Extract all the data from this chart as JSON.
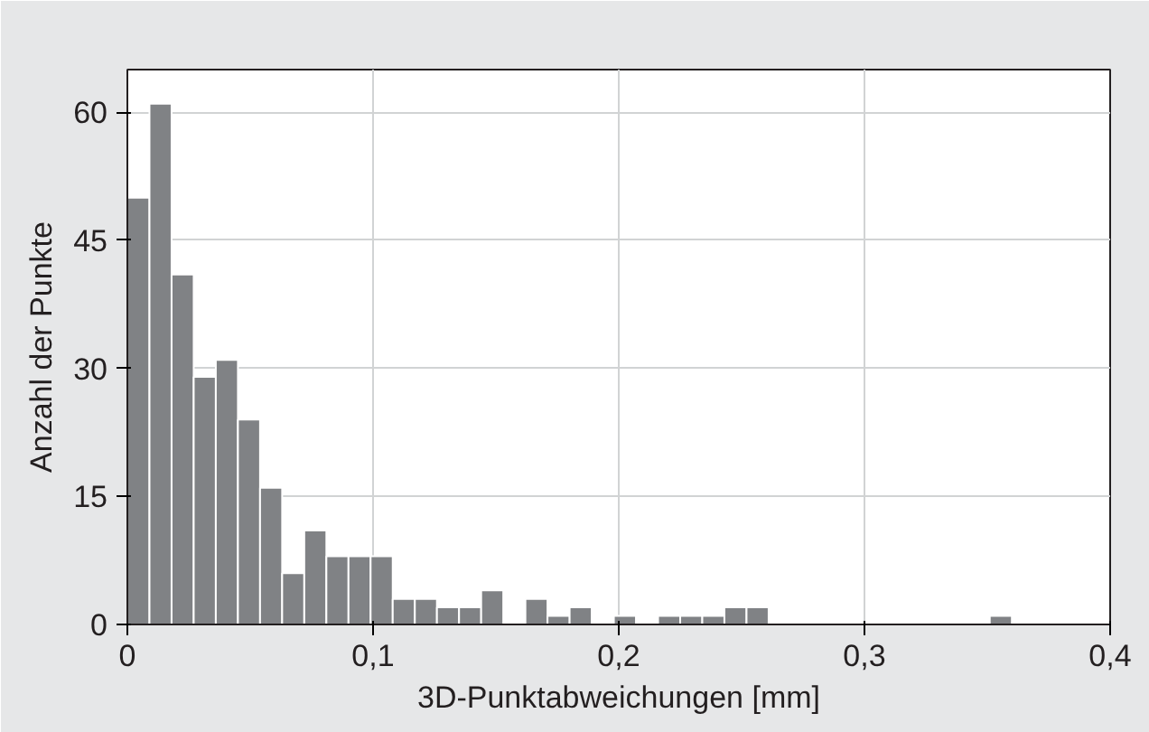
{
  "chart_data": {
    "type": "histogram",
    "xlabel": "3D-Punktabweichungen [mm]",
    "ylabel": "Anzahl der Punkte",
    "bins": [
      0,
      0.009,
      0.018,
      0.027,
      0.036,
      0.045,
      0.054,
      0.063,
      0.072,
      0.081,
      0.09,
      0.099,
      0.108,
      0.117,
      0.126,
      0.135,
      0.144,
      0.153,
      0.162,
      0.171,
      0.18,
      0.189,
      0.198,
      0.207,
      0.216,
      0.225,
      0.234,
      0.243,
      0.252,
      0.261,
      0.27,
      0.279,
      0.288,
      0.297,
      0.306,
      0.315,
      0.324,
      0.333,
      0.342,
      0.351,
      0.36
    ],
    "values": [
      50,
      61,
      41,
      29,
      31,
      24,
      16,
      6,
      11,
      8,
      8,
      8,
      3,
      3,
      2,
      2,
      4,
      0,
      3,
      1,
      2,
      0,
      1,
      0,
      1,
      1,
      1,
      2,
      2,
      0,
      0,
      0,
      0,
      0,
      0,
      0,
      0,
      0,
      0,
      1
    ],
    "color": "#808285",
    "xlim": [
      0,
      0.4
    ],
    "ylim": [
      0,
      65
    ],
    "xticks": [
      0,
      {
        "value": 0.1,
        "label": "0,1"
      },
      {
        "value": 0.2,
        "label": "0,2"
      },
      {
        "value": 0.3,
        "label": "0,3"
      },
      {
        "value": 0.4,
        "label": "0,4"
      }
    ],
    "yticks": [
      0,
      15,
      30,
      45,
      60
    ],
    "grid": true
  }
}
